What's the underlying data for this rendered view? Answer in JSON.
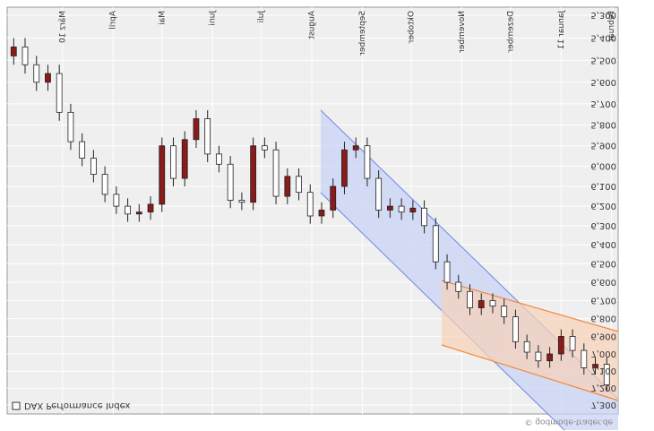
{
  "chart_data": {
    "type": "candlestick",
    "series_name": "DAX Performance Index",
    "source": "© godmode-trader.de",
    "log_scale": true,
    "grid": true,
    "up_color": "#ffffff",
    "down_color": "#8b1a1a",
    "xlim": [
      -34,
      341
    ],
    "xticks": [
      {
        "value": 0,
        "label": "März 10"
      },
      {
        "value": 31,
        "label": "April"
      },
      {
        "value": 61,
        "label": "Mai"
      },
      {
        "value": 92,
        "label": "Juni"
      },
      {
        "value": 122,
        "label": "Juli"
      },
      {
        "value": 153,
        "label": "August"
      },
      {
        "value": 184,
        "label": "September"
      },
      {
        "value": 214,
        "label": "Oktober"
      },
      {
        "value": 245,
        "label": "November"
      },
      {
        "value": 275,
        "label": "Dezember"
      },
      {
        "value": 306,
        "label": "Januar 11"
      },
      {
        "value": 337,
        "label": "Februar"
      }
    ],
    "ylim": [
      5265,
      7354
    ],
    "yticks": [
      {
        "value": 5300,
        "label": "5,300"
      },
      {
        "value": 5400,
        "label": "5,400"
      },
      {
        "value": 5500,
        "label": "5,500"
      },
      {
        "value": 5600,
        "label": "5,600"
      },
      {
        "value": 5700,
        "label": "5,700"
      },
      {
        "value": 5800,
        "label": "5,800"
      },
      {
        "value": 5900,
        "label": "5,900"
      },
      {
        "value": 6000,
        "label": "6,000"
      },
      {
        "value": 6100,
        "label": "6,100"
      },
      {
        "value": 6200,
        "label": "6,200"
      },
      {
        "value": 6300,
        "label": "6,300"
      },
      {
        "value": 6400,
        "label": "6,400"
      },
      {
        "value": 6500,
        "label": "6,500"
      },
      {
        "value": 6600,
        "label": "6,600"
      },
      {
        "value": 6700,
        "label": "6,700"
      },
      {
        "value": 6800,
        "label": "6,800"
      },
      {
        "value": 6900,
        "label": "6,900"
      },
      {
        "value": 7000,
        "label": "7,000"
      },
      {
        "value": 7100,
        "label": "7,100"
      },
      {
        "value": 7200,
        "label": "7,200"
      },
      {
        "value": 7300,
        "label": "7,300"
      }
    ],
    "x": [
      -30,
      -23,
      -16,
      -9,
      -2,
      5,
      12,
      19,
      26,
      33,
      40,
      47,
      54,
      61,
      68,
      75,
      82,
      89,
      96,
      103,
      110,
      117,
      124,
      131,
      138,
      145,
      152,
      159,
      166,
      173,
      180,
      187,
      194,
      201,
      208,
      215,
      222,
      229,
      236,
      243,
      250,
      257,
      264,
      271,
      278,
      285,
      292,
      299,
      306,
      313,
      320,
      327,
      334
    ],
    "open": [
      5480,
      5440,
      5520,
      5600,
      5560,
      5740,
      5880,
      5960,
      6040,
      6140,
      6200,
      6240,
      6230,
      6190,
      5900,
      6060,
      5870,
      5770,
      5940,
      5990,
      6170,
      6180,
      5900,
      5920,
      6150,
      6050,
      6130,
      6250,
      6220,
      6100,
      5920,
      5900,
      6060,
      6220,
      6200,
      6230,
      6210,
      6300,
      6490,
      6600,
      6650,
      6740,
      6700,
      6730,
      6790,
      6930,
      6990,
      7040,
      7000,
      6900,
      6980,
      7080,
      7060
    ],
    "high": [
      5520,
      5560,
      5640,
      5640,
      5780,
      5920,
      6000,
      6080,
      6180,
      6240,
      6280,
      6280,
      6270,
      6230,
      6100,
      6100,
      5910,
      5980,
      6030,
      6210,
      6220,
      6220,
      5960,
      6190,
      6190,
      6170,
      6290,
      6290,
      6260,
      6140,
      5960,
      6100,
      6260,
      6260,
      6270,
      6270,
      6340,
      6530,
      6640,
      6690,
      6780,
      6780,
      6770,
      6830,
      6970,
      7030,
      7080,
      7080,
      7040,
      7020,
      7120,
      7120,
      7220
    ],
    "low": [
      5400,
      5400,
      5480,
      5520,
      5520,
      5700,
      5840,
      5920,
      6000,
      6100,
      6160,
      6190,
      6150,
      5860,
      5860,
      5830,
      5730,
      5730,
      5900,
      5950,
      6130,
      5860,
      5860,
      5880,
      6010,
      6010,
      6090,
      6180,
      6060,
      5880,
      5860,
      5860,
      6020,
      6160,
      6160,
      6170,
      6170,
      6260,
      6450,
      6560,
      6610,
      6660,
      6660,
      6690,
      6750,
      6890,
      6950,
      6960,
      6860,
      6860,
      6940,
      7020,
      7020
    ],
    "close": [
      5440,
      5520,
      5600,
      5560,
      5740,
      5880,
      5960,
      6040,
      6140,
      6200,
      6240,
      6230,
      6190,
      5900,
      6060,
      5870,
      5770,
      5940,
      5990,
      6170,
      6180,
      5900,
      5920,
      6150,
      6050,
      6130,
      6250,
      6220,
      6100,
      5920,
      5900,
      6060,
      6220,
      6200,
      6230,
      6210,
      6300,
      6490,
      6600,
      6650,
      6740,
      6700,
      6730,
      6790,
      6930,
      6990,
      7040,
      7000,
      6900,
      6980,
      7080,
      7060,
      7180
    ]
  }
}
